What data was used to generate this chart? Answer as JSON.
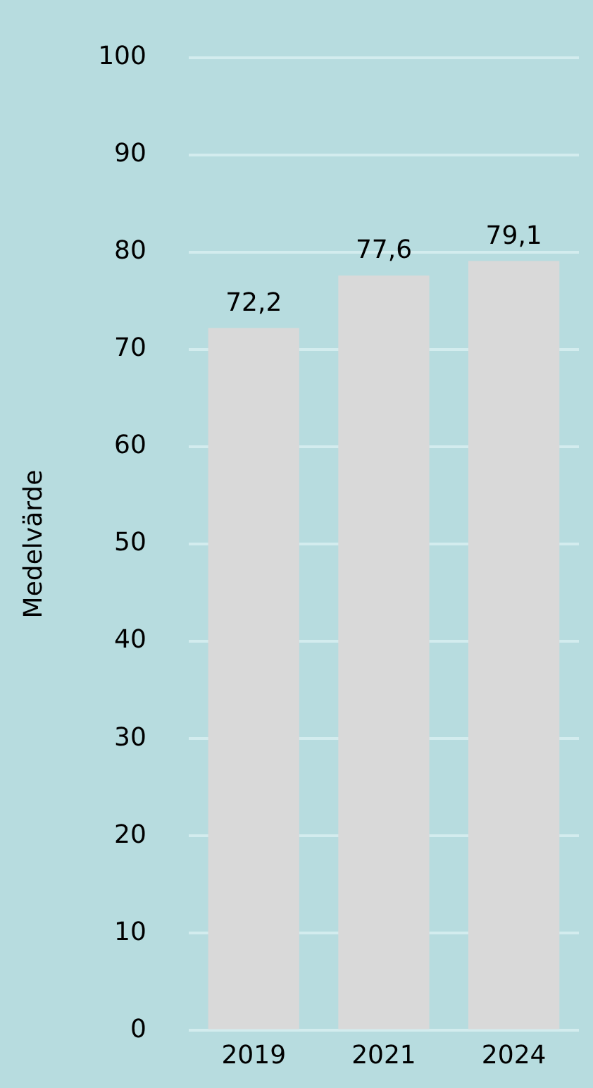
{
  "chart_data": {
    "type": "bar",
    "ylabel": "Medelvärde",
    "categories": [
      "2019",
      "2021",
      "2024"
    ],
    "values": [
      72.2,
      77.6,
      79.1
    ],
    "value_labels": [
      "72,2",
      "77,6",
      "79,1"
    ],
    "color": "#d9d9d9",
    "ylim": [
      0,
      100
    ],
    "yticks": [
      0,
      10,
      20,
      30,
      40,
      50,
      60,
      70,
      80,
      90,
      100
    ],
    "grid": "y",
    "legend": false
  }
}
